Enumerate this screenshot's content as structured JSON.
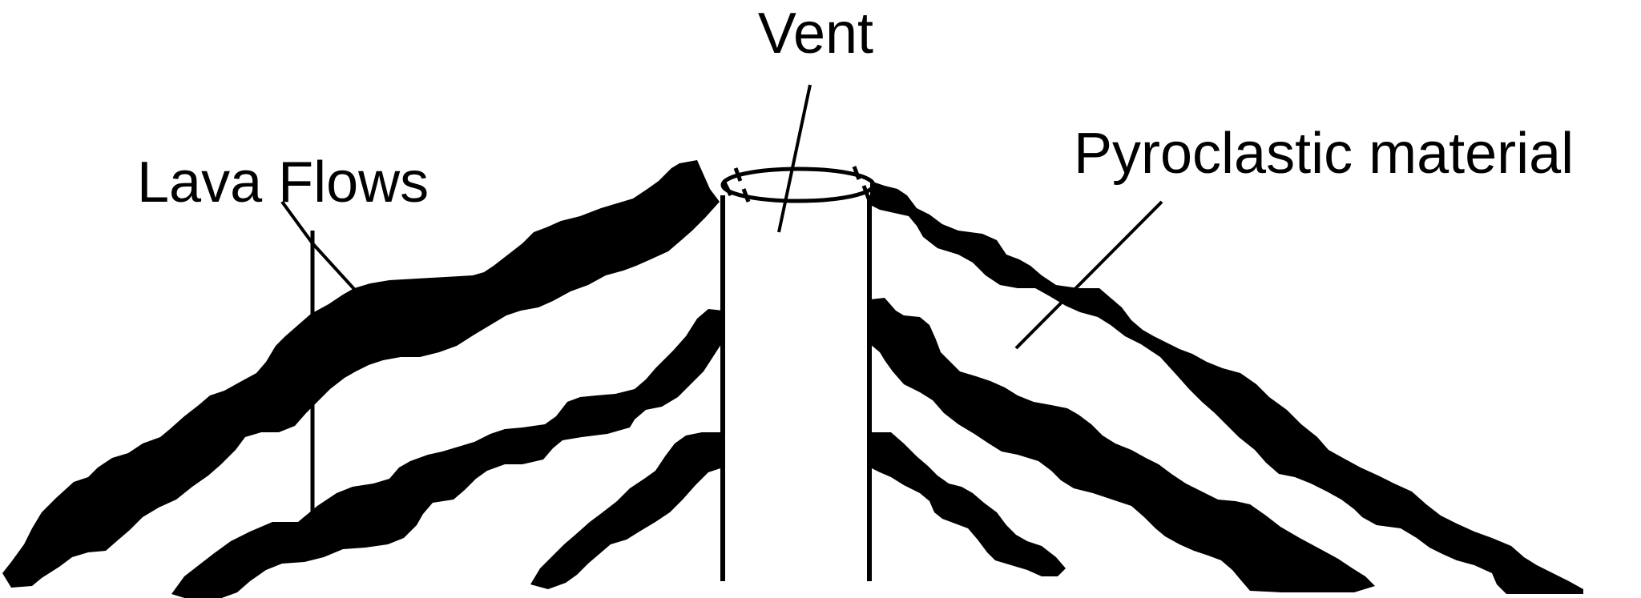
{
  "labels": {
    "vent": "Vent",
    "lava_flows": "Lava Flows",
    "pyroclastic": "Pyroclastic material"
  },
  "colors": {
    "ink": "#000000",
    "background": "#ffffff"
  }
}
